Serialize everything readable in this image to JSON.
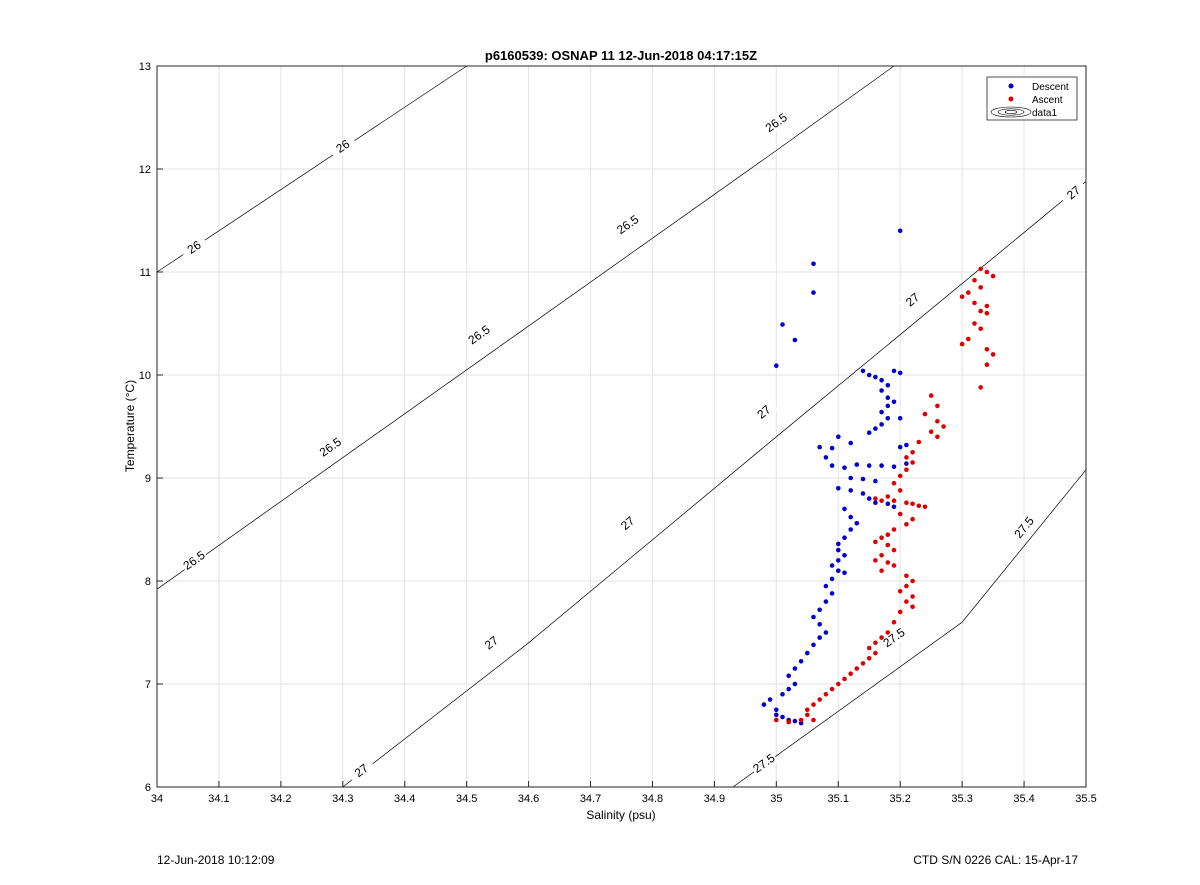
{
  "chart_data": {
    "type": "scatter",
    "title": "p6160539: OSNAP 11 12-Jun-2018 04:17:15Z",
    "xlabel": "Salinity (psu)",
    "ylabel": "Temperature (°C)",
    "xlim": [
      34,
      35.5
    ],
    "ylim": [
      6,
      13
    ],
    "xticks": [
      "34",
      "34.1",
      "34.2",
      "34.3",
      "34.4",
      "34.5",
      "34.6",
      "34.7",
      "34.8",
      "34.9",
      "35",
      "35.1",
      "35.2",
      "35.3",
      "35.4",
      "35.5"
    ],
    "yticks": [
      "6",
      "7",
      "8",
      "9",
      "10",
      "11",
      "12",
      "13"
    ],
    "grid": true,
    "legend_position": "top-right",
    "colors": {
      "descent": "#0000cc",
      "ascent": "#dd0000",
      "contour": "#000000",
      "grid": "#e3e3e3"
    },
    "legend": [
      "Descent",
      "Ascent",
      "data1"
    ],
    "series": [
      {
        "name": "Descent",
        "points": [
          [
            35.06,
            11.08
          ],
          [
            35.06,
            10.8
          ],
          [
            35.2,
            11.4
          ],
          [
            35.01,
            10.49
          ],
          [
            35.03,
            10.34
          ],
          [
            35.0,
            10.09
          ],
          [
            35.14,
            10.04
          ],
          [
            35.15,
            10.0
          ],
          [
            35.16,
            9.98
          ],
          [
            35.17,
            9.95
          ],
          [
            35.19,
            10.04
          ],
          [
            35.2,
            10.02
          ],
          [
            35.18,
            9.9
          ],
          [
            35.17,
            9.85
          ],
          [
            35.18,
            9.78
          ],
          [
            35.19,
            9.74
          ],
          [
            35.18,
            9.7
          ],
          [
            35.17,
            9.64
          ],
          [
            35.18,
            9.58
          ],
          [
            35.17,
            9.52
          ],
          [
            35.16,
            9.48
          ],
          [
            35.2,
            9.58
          ],
          [
            35.21,
            9.32
          ],
          [
            35.2,
            9.3
          ],
          [
            35.15,
            9.44
          ],
          [
            35.12,
            9.34
          ],
          [
            35.09,
            9.29
          ],
          [
            35.1,
            9.4
          ],
          [
            35.07,
            9.3
          ],
          [
            35.08,
            9.2
          ],
          [
            35.09,
            9.12
          ],
          [
            35.11,
            9.1
          ],
          [
            35.13,
            9.13
          ],
          [
            35.15,
            9.12
          ],
          [
            35.17,
            9.12
          ],
          [
            35.19,
            9.11
          ],
          [
            35.21,
            9.14
          ],
          [
            35.12,
            9.0
          ],
          [
            35.14,
            8.99
          ],
          [
            35.16,
            8.97
          ],
          [
            35.1,
            8.9
          ],
          [
            35.12,
            8.88
          ],
          [
            35.14,
            8.85
          ],
          [
            35.15,
            8.8
          ],
          [
            35.16,
            8.76
          ],
          [
            35.18,
            8.75
          ],
          [
            35.19,
            8.72
          ],
          [
            35.11,
            8.7
          ],
          [
            35.12,
            8.62
          ],
          [
            35.13,
            8.56
          ],
          [
            35.12,
            8.5
          ],
          [
            35.11,
            8.42
          ],
          [
            35.1,
            8.36
          ],
          [
            35.1,
            8.3
          ],
          [
            35.11,
            8.25
          ],
          [
            35.1,
            8.2
          ],
          [
            35.09,
            8.15
          ],
          [
            35.1,
            8.1
          ],
          [
            35.11,
            8.08
          ],
          [
            35.09,
            8.02
          ],
          [
            35.08,
            7.95
          ],
          [
            35.09,
            7.88
          ],
          [
            35.08,
            7.8
          ],
          [
            35.07,
            7.72
          ],
          [
            35.06,
            7.65
          ],
          [
            35.07,
            7.58
          ],
          [
            35.08,
            7.5
          ],
          [
            35.07,
            7.45
          ],
          [
            35.06,
            7.38
          ],
          [
            35.05,
            7.3
          ],
          [
            35.04,
            7.22
          ],
          [
            35.03,
            7.15
          ],
          [
            35.02,
            7.08
          ],
          [
            35.03,
            7.0
          ],
          [
            35.02,
            6.95
          ],
          [
            35.01,
            6.9
          ],
          [
            34.99,
            6.85
          ],
          [
            34.98,
            6.8
          ],
          [
            35.0,
            6.75
          ],
          [
            35.0,
            6.7
          ],
          [
            35.01,
            6.68
          ],
          [
            35.02,
            6.65
          ],
          [
            35.03,
            6.64
          ],
          [
            35.04,
            6.62
          ]
        ]
      },
      {
        "name": "Ascent",
        "points": [
          [
            35.33,
            11.03
          ],
          [
            35.34,
            11.0
          ],
          [
            35.35,
            10.96
          ],
          [
            35.32,
            10.92
          ],
          [
            35.33,
            10.85
          ],
          [
            35.31,
            10.8
          ],
          [
            35.3,
            10.76
          ],
          [
            35.32,
            10.7
          ],
          [
            35.34,
            10.67
          ],
          [
            35.33,
            10.62
          ],
          [
            35.34,
            10.6
          ],
          [
            35.32,
            10.5
          ],
          [
            35.33,
            10.45
          ],
          [
            35.31,
            10.35
          ],
          [
            35.3,
            10.3
          ],
          [
            35.34,
            10.25
          ],
          [
            35.35,
            10.2
          ],
          [
            35.34,
            10.1
          ],
          [
            35.33,
            9.88
          ],
          [
            35.25,
            9.8
          ],
          [
            35.26,
            9.7
          ],
          [
            35.24,
            9.62
          ],
          [
            35.26,
            9.55
          ],
          [
            35.27,
            9.5
          ],
          [
            35.25,
            9.45
          ],
          [
            35.26,
            9.4
          ],
          [
            35.23,
            9.35
          ],
          [
            35.22,
            9.25
          ],
          [
            35.21,
            9.2
          ],
          [
            35.22,
            9.15
          ],
          [
            35.21,
            9.08
          ],
          [
            35.2,
            9.02
          ],
          [
            35.19,
            8.95
          ],
          [
            35.2,
            8.88
          ],
          [
            35.18,
            8.82
          ],
          [
            35.16,
            8.8
          ],
          [
            35.17,
            8.78
          ],
          [
            35.19,
            8.78
          ],
          [
            35.21,
            8.76
          ],
          [
            35.22,
            8.75
          ],
          [
            35.23,
            8.73
          ],
          [
            35.24,
            8.72
          ],
          [
            35.2,
            8.65
          ],
          [
            35.22,
            8.6
          ],
          [
            35.21,
            8.55
          ],
          [
            35.19,
            8.5
          ],
          [
            35.18,
            8.45
          ],
          [
            35.17,
            8.42
          ],
          [
            35.16,
            8.38
          ],
          [
            35.18,
            8.35
          ],
          [
            35.19,
            8.3
          ],
          [
            35.17,
            8.25
          ],
          [
            35.16,
            8.2
          ],
          [
            35.18,
            8.18
          ],
          [
            35.19,
            8.15
          ],
          [
            35.17,
            8.1
          ],
          [
            35.21,
            8.05
          ],
          [
            35.22,
            8.0
          ],
          [
            35.21,
            7.95
          ],
          [
            35.2,
            7.9
          ],
          [
            35.22,
            7.85
          ],
          [
            35.21,
            7.8
          ],
          [
            35.22,
            7.75
          ],
          [
            35.2,
            7.7
          ],
          [
            35.19,
            7.6
          ],
          [
            35.18,
            7.5
          ],
          [
            35.17,
            7.45
          ],
          [
            35.16,
            7.4
          ],
          [
            35.15,
            7.35
          ],
          [
            35.16,
            7.3
          ],
          [
            35.15,
            7.25
          ],
          [
            35.14,
            7.2
          ],
          [
            35.13,
            7.15
          ],
          [
            35.12,
            7.1
          ],
          [
            35.11,
            7.05
          ],
          [
            35.1,
            7.0
          ],
          [
            35.09,
            6.95
          ],
          [
            35.08,
            6.9
          ],
          [
            35.07,
            6.85
          ],
          [
            35.06,
            6.8
          ],
          [
            35.05,
            6.75
          ],
          [
            35.05,
            6.7
          ],
          [
            35.04,
            6.65
          ],
          [
            35.02,
            6.63
          ],
          [
            35.0,
            6.65
          ],
          [
            35.06,
            6.65
          ]
        ]
      }
    ],
    "contours": [
      {
        "level": "26",
        "points": [
          [
            34.0,
            11.0
          ],
          [
            34.5,
            13.0
          ]
        ],
        "labels": [
          [
            34.06,
            11.24
          ],
          [
            34.3,
            12.22
          ]
        ]
      },
      {
        "level": "26.5",
        "points": [
          [
            34.0,
            7.92
          ],
          [
            34.5,
            10.05
          ],
          [
            35.0,
            12.18
          ],
          [
            35.19,
            13.0
          ]
        ],
        "labels": [
          [
            34.06,
            8.2
          ],
          [
            34.28,
            9.3
          ],
          [
            34.52,
            10.39
          ],
          [
            34.76,
            11.46
          ],
          [
            35.0,
            12.45
          ]
        ]
      },
      {
        "level": "27",
        "points": [
          [
            34.3,
            6.0
          ],
          [
            34.6,
            7.4
          ],
          [
            35.0,
            9.4
          ],
          [
            35.5,
            11.88
          ]
        ],
        "labels": [
          [
            34.33,
            6.16
          ],
          [
            34.54,
            7.4
          ],
          [
            34.76,
            8.56
          ],
          [
            34.98,
            9.64
          ],
          [
            35.22,
            10.73
          ],
          [
            35.48,
            11.77
          ]
        ]
      },
      {
        "level": "27.5",
        "points": [
          [
            34.93,
            6.0
          ],
          [
            35.3,
            7.6
          ],
          [
            35.5,
            9.08
          ]
        ],
        "labels": [
          [
            34.98,
            6.23
          ],
          [
            35.19,
            7.45
          ],
          [
            35.4,
            8.52
          ]
        ]
      }
    ]
  },
  "footer": {
    "left": "12-Jun-2018 10:12:09",
    "right": "CTD S/N 0226  CAL: 15-Apr-17"
  }
}
